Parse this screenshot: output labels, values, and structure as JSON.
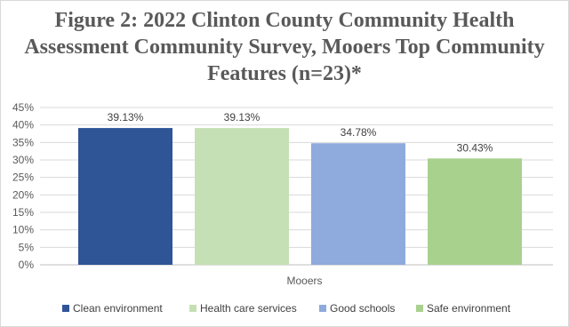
{
  "chart_data": {
    "type": "bar",
    "title": "Figure 2: 2022 Clinton County Community Health Assessment Community Survey, Mooers Top Community Features (n=23)*",
    "categories": [
      "Mooers"
    ],
    "series": [
      {
        "name": "Clean environment",
        "values": [
          39.13
        ],
        "label": "39.13%",
        "color": "#2f5597"
      },
      {
        "name": "Health care services",
        "values": [
          39.13
        ],
        "label": "39.13%",
        "color": "#c5e0b4"
      },
      {
        "name": "Good schools",
        "values": [
          34.78
        ],
        "label": "34.78%",
        "color": "#8faadc"
      },
      {
        "name": "Safe environment",
        "values": [
          30.43
        ],
        "label": "30.43%",
        "color": "#a9d18e"
      }
    ],
    "yticks": [
      "0%",
      "5%",
      "10%",
      "15%",
      "20%",
      "25%",
      "30%",
      "35%",
      "40%",
      "45%"
    ],
    "ylim": [
      0,
      45
    ],
    "grid": true,
    "legend": "bottom"
  }
}
